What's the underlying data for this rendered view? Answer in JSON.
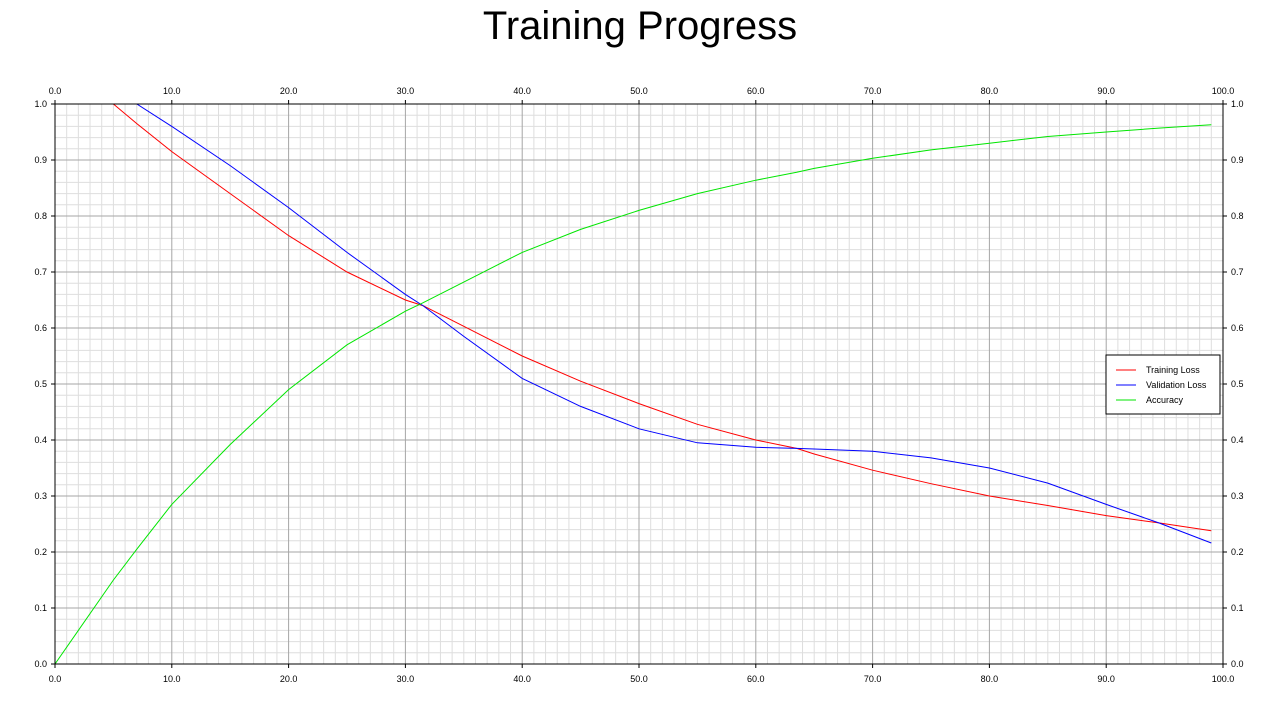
{
  "chart_data": {
    "type": "line",
    "title": "Training Progress",
    "xlabel": "",
    "ylabel": "",
    "xlim": [
      0,
      100
    ],
    "ylim": [
      0,
      1
    ],
    "x_ticks": [
      "0.0",
      "10.0",
      "20.0",
      "30.0",
      "40.0",
      "50.0",
      "60.0",
      "70.0",
      "80.0",
      "90.0",
      "100.0"
    ],
    "y_ticks": [
      "0.0",
      "0.1",
      "0.2",
      "0.3",
      "0.4",
      "0.5",
      "0.6",
      "0.7",
      "0.8",
      "0.9",
      "1.0"
    ],
    "grid": true,
    "legend_position": "right",
    "x": [
      0,
      5,
      7,
      10,
      15,
      20,
      25,
      30,
      31.5,
      35,
      40,
      45,
      50,
      55,
      60,
      63.5,
      65,
      70,
      75,
      80,
      85,
      90,
      94.5,
      99
    ],
    "series": [
      {
        "name": "Training Loss",
        "color": "#ff0000",
        "values": [
          1.0,
          1.0,
          0.965,
          0.915,
          0.84,
          0.765,
          0.7,
          0.65,
          0.64,
          0.603,
          0.55,
          0.505,
          0.465,
          0.428,
          0.4,
          0.385,
          0.375,
          0.346,
          0.322,
          0.3,
          0.283,
          0.265,
          0.252,
          0.238
        ]
      },
      {
        "name": "Validation Loss",
        "color": "#0000ff",
        "values": [
          1.0,
          1.0,
          1.0,
          0.96,
          0.89,
          0.815,
          0.735,
          0.66,
          0.64,
          0.585,
          0.51,
          0.46,
          0.42,
          0.395,
          0.387,
          0.385,
          0.384,
          0.38,
          0.368,
          0.35,
          0.323,
          0.285,
          0.252,
          0.216
        ]
      },
      {
        "name": "Accuracy",
        "color": "#00e600",
        "values": [
          0.0,
          0.15,
          0.205,
          0.285,
          0.392,
          0.49,
          0.57,
          0.63,
          0.645,
          0.682,
          0.735,
          0.776,
          0.81,
          0.84,
          0.864,
          0.878,
          0.885,
          0.903,
          0.918,
          0.93,
          0.942,
          0.95,
          0.957,
          0.963
        ]
      }
    ]
  }
}
